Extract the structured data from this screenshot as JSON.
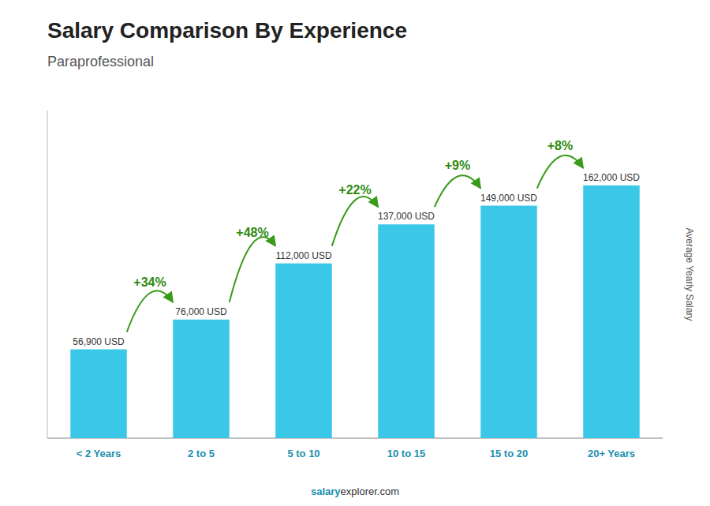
{
  "chart_data": {
    "type": "bar",
    "title": "Salary Comparison By Experience",
    "subtitle": "Paraprofessional",
    "y_label": "Average Yearly Salary",
    "categories": [
      "< 2 Years",
      "2 to 5",
      "5 to 10",
      "10 to 15",
      "15 to 20",
      "20+ Years"
    ],
    "values": [
      56900,
      76000,
      112000,
      137000,
      149000,
      162000
    ],
    "value_labels": [
      "56,900 USD",
      "76,000 USD",
      "112,000 USD",
      "137,000 USD",
      "149,000 USD",
      "162,000 USD"
    ],
    "data_labels": true,
    "annotations": [
      "+34%",
      "+48%",
      "+22%",
      "+9%",
      "+8%"
    ],
    "footer": [
      "salary",
      "explorer.com"
    ],
    "color": "#3BC8E8",
    "ylim": [
      0,
      210000
    ],
    "tick_labels": "x"
  }
}
